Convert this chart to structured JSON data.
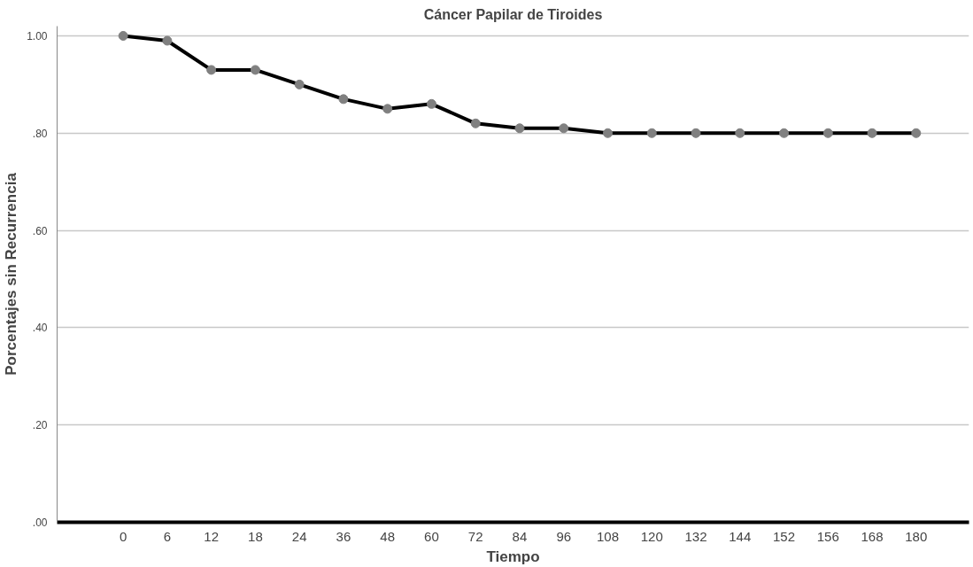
{
  "chart_data": {
    "type": "line",
    "title": "Cáncer Papilar de Tiroides",
    "xlabel": "Tiempo",
    "ylabel": "Porcentajes sin Recurrencia",
    "categories": [
      "0",
      "6",
      "12",
      "18",
      "24",
      "36",
      "48",
      "60",
      "72",
      "84",
      "96",
      "108",
      "120",
      "132",
      "144",
      "152",
      "156",
      "168",
      "180"
    ],
    "series": [
      {
        "color": "#000000",
        "values": [
          1.0,
          0.99,
          0.93,
          0.93,
          0.9,
          0.87,
          0.85,
          0.86,
          0.82,
          0.81,
          0.81,
          0.8,
          0.8,
          0.8,
          0.8,
          0.8,
          0.8,
          0.8,
          0.8
        ]
      }
    ],
    "ylim": [
      0,
      1.02
    ],
    "yticks": [
      {
        "value": 0,
        "label": ".00"
      },
      {
        "value": 0.2,
        "label": ".20"
      },
      {
        "value": 0.4,
        "label": ".40"
      },
      {
        "value": 0.6,
        "label": ".60"
      },
      {
        "value": 0.8,
        "label": ".80"
      },
      {
        "value": 1.0,
        "label": "1.00"
      }
    ],
    "grid": "y",
    "marker": "circle",
    "line_style": "solid"
  }
}
